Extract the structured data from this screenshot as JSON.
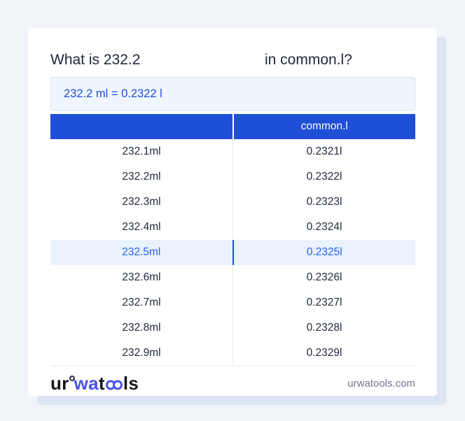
{
  "header": {
    "title_part1": "What is 232.2",
    "title_part2": "in common.l?"
  },
  "answer": {
    "text": "232.2 ml = 0.2322 l"
  },
  "table": {
    "columns": {
      "left": "",
      "right": "common.l"
    },
    "rows": [
      {
        "ml": "232.1ml",
        "l": "0.2321l",
        "highlighted": false
      },
      {
        "ml": "232.2ml",
        "l": "0.2322l",
        "highlighted": false
      },
      {
        "ml": "232.3ml",
        "l": "0.2323l",
        "highlighted": false
      },
      {
        "ml": "232.4ml",
        "l": "0.2324l",
        "highlighted": false
      },
      {
        "ml": "232.5ml",
        "l": "0.2325l",
        "highlighted": true
      },
      {
        "ml": "232.6ml",
        "l": "0.2326l",
        "highlighted": false
      },
      {
        "ml": "232.7ml",
        "l": "0.2327l",
        "highlighted": false
      },
      {
        "ml": "232.8ml",
        "l": "0.2328l",
        "highlighted": false
      },
      {
        "ml": "232.9ml",
        "l": "0.2329l",
        "highlighted": false
      }
    ]
  },
  "footer": {
    "logo": {
      "part1": "ur",
      "part2": "wa",
      "part3": "t",
      "part4": "ls"
    },
    "site": "urwatools.com"
  },
  "colors": {
    "accent_blue": "#1d4ed8",
    "table_header_bg": "#1e4fd6",
    "highlight_row_bg": "#e9f2fd",
    "answer_box_bg": "#eff6ff",
    "logo_blue": "#4a52e8",
    "page_bg": "#f1f4f9"
  }
}
